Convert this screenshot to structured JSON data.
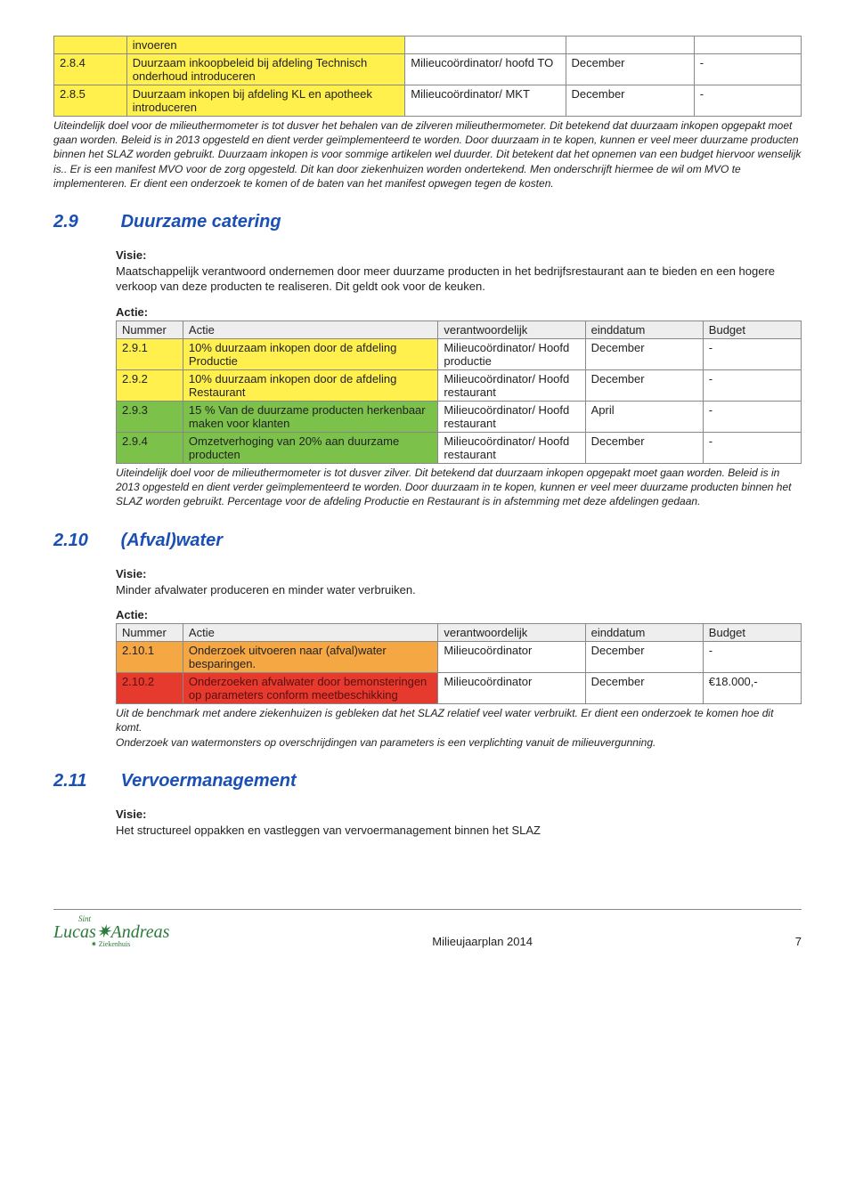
{
  "colors": {
    "yellow": "#fff04d",
    "green": "#7cc24a",
    "orange": "#f4a742",
    "red": "#e63a2e",
    "header_gray": "#eeeeee",
    "heading_blue": "#1a4fb5",
    "logo_green": "#2a7a3a"
  },
  "top_table": {
    "rows": [
      {
        "num": "",
        "num_class": "yellow",
        "actie": "invoeren",
        "actie_class": "yellow",
        "resp": "",
        "date": "",
        "budget": ""
      },
      {
        "num": "2.8.4",
        "num_class": "yellow",
        "actie": "Duurzaam inkoopbeleid bij afdeling Technisch onderhoud introduceren",
        "actie_class": "yellow",
        "resp": "Milieucoördinator/ hoofd TO",
        "date": "December",
        "budget": "-"
      },
      {
        "num": "2.8.5",
        "num_class": "yellow",
        "actie": "Duurzaam inkopen bij afdeling KL en apotheek introduceren",
        "actie_class": "yellow",
        "resp": "Milieucoördinator/ MKT",
        "date": "December",
        "budget": "-"
      }
    ]
  },
  "top_note": "Uiteindelijk doel voor de milieuthermometer is tot dusver het behalen van de zilveren milieuthermometer. Dit betekend dat duurzaam inkopen opgepakt moet gaan worden. Beleid is in 2013 opgesteld en dient verder geïmplementeerd te worden. Door duurzaam in te kopen, kunnen er veel meer duurzame producten binnen het SLAZ worden gebruikt. Duurzaam inkopen is voor sommige artikelen wel duurder. Dit betekent dat het opnemen van een budget hiervoor wenselijk is.. Er is een manifest MVO voor de zorg opgesteld. Dit kan door ziekenhuizen worden ondertekend. Men onderschrijft hiermee de wil om MVO te implementeren. Er dient een onderzoek te komen of de baten van het manifest opwegen tegen de kosten.",
  "sec29": {
    "num": "2.9",
    "title": "Duurzame catering",
    "visie_label": "Visie:",
    "visie": "Maatschappelijk verantwoord ondernemen door meer duurzame producten in het bedrijfsrestaurant aan te bieden en een hogere verkoop van deze producten te realiseren. Dit geldt ook voor de keuken.",
    "actie_label": "Actie:",
    "headers": [
      "Nummer",
      "Actie",
      "verantwoordelijk",
      "einddatum",
      "Budget"
    ],
    "rows": [
      {
        "num": "2.9.1",
        "num_class": "yellow",
        "actie": "10% duurzaam inkopen door de afdeling Productie",
        "actie_class": "yellow",
        "resp": "Milieucoördinator/ Hoofd productie",
        "date": "December",
        "budget": "-"
      },
      {
        "num": "2.9.2",
        "num_class": "yellow",
        "actie": "10% duurzaam inkopen door de afdeling Restaurant",
        "actie_class": "yellow",
        "resp": "Milieucoördinator/ Hoofd restaurant",
        "date": "December",
        "budget": "-"
      },
      {
        "num": "2.9.3",
        "num_class": "green",
        "actie": "15 % Van de duurzame producten herkenbaar maken voor klanten",
        "actie_class": "green",
        "resp": "Milieucoördinator/ Hoofd restaurant",
        "date": "April",
        "budget": "-"
      },
      {
        "num": "2.9.4",
        "num_class": "green",
        "actie": "Omzetverhoging van 20% aan duurzame producten",
        "actie_class": "green",
        "resp": "Milieucoördinator/ Hoofd restaurant",
        "date": "December",
        "budget": "-"
      }
    ],
    "note": "Uiteindelijk doel voor de milieuthermometer is tot dusver zilver. Dit betekend dat duurzaam inkopen opgepakt moet gaan worden. Beleid is in 2013 opgesteld en dient verder geïmplementeerd te worden. Door duurzaam in te kopen, kunnen er veel meer duurzame producten binnen het SLAZ worden gebruikt. Percentage voor de afdeling Productie en Restaurant is in afstemming met deze afdelingen gedaan."
  },
  "sec210": {
    "num": "2.10",
    "title": "(Afval)water",
    "visie_label": "Visie:",
    "visie": "Minder afvalwater produceren en minder water verbruiken.",
    "actie_label": "Actie:",
    "headers": [
      "Nummer",
      "Actie",
      "verantwoordelijk",
      "einddatum",
      "Budget"
    ],
    "rows": [
      {
        "num": "2.10.1",
        "num_class": "orange",
        "actie": "Onderzoek uitvoeren naar (afval)water besparingen.",
        "actie_class": "orange",
        "resp": "Milieucoördinator",
        "date": "December",
        "budget": "-"
      },
      {
        "num": "2.10.2",
        "num_class": "red",
        "actie": "Onderzoeken afvalwater door bemonsteringen op parameters conform meetbeschikking",
        "actie_class": "red",
        "resp": "Milieucoördinator",
        "date": "December",
        "budget": "€18.000,-"
      }
    ],
    "note": "Uit de benchmark met andere ziekenhuizen is gebleken dat het SLAZ relatief veel water verbruikt. Er dient een onderzoek te komen hoe dit komt.\nOnderzoek van watermonsters op overschrijdingen van parameters is een verplichting vanuit de milieuvergunning."
  },
  "sec211": {
    "num": "2.11",
    "title": "Vervoermanagement",
    "visie_label": "Visie:",
    "visie": "Het structureel oppakken en vastleggen van vervoermanagement binnen het SLAZ"
  },
  "footer": {
    "logo_sint": "Sint",
    "logo_main": "Lucas✷Andreas",
    "logo_sub": "✷ Ziekenhuis",
    "center": "Milieujaarplan 2014",
    "page": "7"
  }
}
